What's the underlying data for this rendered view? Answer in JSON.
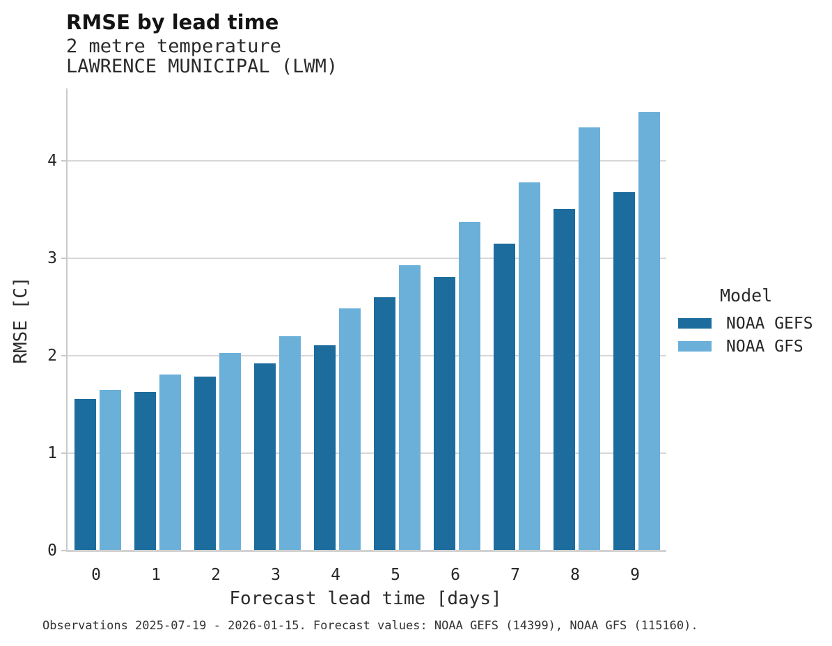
{
  "header": {
    "title": "RMSE by lead time",
    "subtitle1": "2 metre temperature",
    "subtitle2": "LAWRENCE MUNICIPAL (LWM)"
  },
  "chart_data": {
    "type": "bar",
    "grouped": true,
    "title": "RMSE by lead time",
    "subtitle": "2 metre temperature",
    "station": "LAWRENCE MUNICIPAL (LWM)",
    "xlabel": "Forecast lead time [days]",
    "ylabel": "RMSE [C]",
    "categories": [
      "0",
      "1",
      "2",
      "3",
      "4",
      "5",
      "6",
      "7",
      "8",
      "9"
    ],
    "series": [
      {
        "name": "NOAA GEFS",
        "color": "#1c6d9d",
        "values": [
          1.55,
          1.62,
          1.78,
          1.91,
          2.1,
          2.59,
          2.8,
          3.14,
          3.5,
          3.67
        ]
      },
      {
        "name": "NOAA GFS",
        "color": "#6ab0d9",
        "values": [
          1.64,
          1.8,
          2.02,
          2.19,
          2.48,
          2.92,
          3.36,
          3.77,
          4.33,
          4.49
        ]
      }
    ],
    "ylim": [
      0,
      4.74
    ],
    "yticks": [
      0,
      1,
      2,
      3,
      4
    ],
    "grid": "horizontal",
    "legend_position": "right"
  },
  "legend": {
    "title": "Model",
    "entries": [
      {
        "label": "NOAA GEFS",
        "color": "#1c6d9d"
      },
      {
        "label": "NOAA GFS",
        "color": "#6ab0d9"
      }
    ]
  },
  "footer": {
    "note": "Observations 2025-07-19 - 2026-01-15. Forecast values: NOAA GEFS (14399), NOAA GFS (115160)."
  },
  "colors": {
    "gridline": "#d7d7d7",
    "axis_spine": "#c9c9c9",
    "text": "#262626"
  }
}
